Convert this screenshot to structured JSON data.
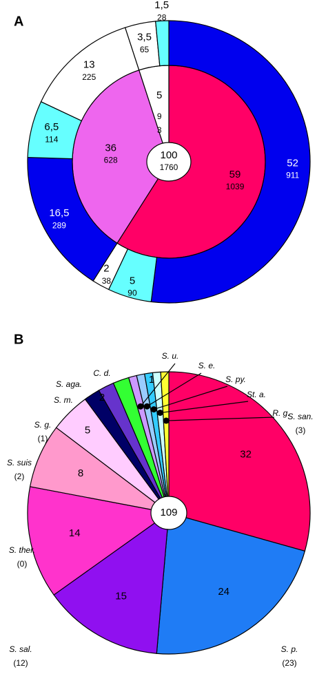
{
  "chart_data": [
    {
      "type": "donut",
      "panel_label": "A",
      "center_value": 100,
      "center_count": 1760,
      "rings": [
        {
          "values": [
            59,
            36,
            5
          ],
          "counts": [
            1039,
            628,
            93
          ],
          "colors": [
            "#ff0066",
            "#ee66ee",
            "#ffffff"
          ]
        },
        {
          "values": [
            52,
            5,
            2,
            16.5,
            6.5,
            13,
            3.5,
            1.5
          ],
          "value_labels": [
            "52",
            "5",
            "2",
            "16,5",
            "6,5",
            "13",
            "3,5",
            "1,5"
          ],
          "counts": [
            911,
            90,
            38,
            289,
            114,
            225,
            65,
            28
          ],
          "colors": [
            "#0000ee",
            "#66ffff",
            "#ffffff",
            "#0000ee",
            "#66ffff",
            "#ffffff",
            "#ffffff",
            "#66ffff"
          ]
        }
      ]
    },
    {
      "type": "pie",
      "panel_label": "B",
      "center_value": 109,
      "categories": [
        "S. san.",
        "S. p.",
        "S. sal.",
        "S. ther.",
        "S. suis",
        "S. g.",
        "S. m.",
        "S. aga.",
        "C. d.",
        "S. u.",
        "S. e.",
        "S. py.",
        "St. a.",
        "R. g."
      ],
      "values": [
        32,
        24,
        15,
        14,
        8,
        5,
        2,
        2,
        2,
        1,
        1,
        1,
        1,
        1
      ],
      "counts": [
        {
          "value": 3,
          "label": "(3)"
        },
        {
          "value": 23,
          "label": "(23)"
        },
        {
          "value": 12,
          "label": "(12)"
        },
        {
          "value": 0,
          "label": "(0)"
        },
        {
          "value": 2,
          "label": "(2)"
        },
        {
          "value": 1,
          "label": "(1)"
        },
        null,
        null,
        null,
        null,
        null,
        null,
        null,
        null
      ],
      "colors": [
        "#ff0066",
        "#1f7cf5",
        "#9010f0",
        "#ff33cc",
        "#ff99cc",
        "#ffccff",
        "#000066",
        "#6633cc",
        "#33ff33",
        "#cc99ff",
        "#99ccff",
        "#33ccff",
        "#ccffff",
        "#ffff33"
      ]
    }
  ]
}
